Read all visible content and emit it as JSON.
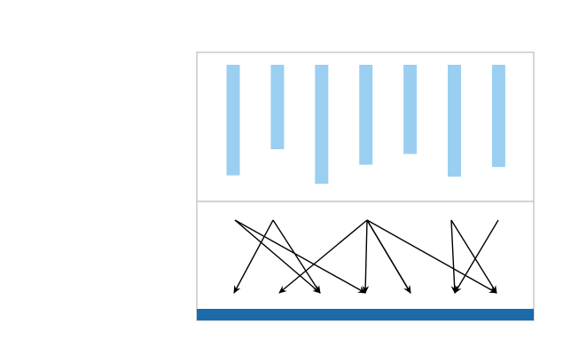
{
  "diagram": {
    "bar_color": "#9ACFF1",
    "panel_border_color": "#C9C9C9",
    "baseline_color": "#1B6BAA",
    "arrow_color": "#000000",
    "bars": [
      {
        "name": "bar-1",
        "relative_length": 0.93
      },
      {
        "name": "bar-2",
        "relative_length": 0.71
      },
      {
        "name": "bar-3",
        "relative_length": 1.0
      },
      {
        "name": "bar-4",
        "relative_length": 0.84
      },
      {
        "name": "bar-5",
        "relative_length": 0.75
      },
      {
        "name": "bar-6",
        "relative_length": 0.94
      },
      {
        "name": "bar-7",
        "relative_length": 0.86
      }
    ],
    "source_nodes": 6,
    "target_nodes": 7,
    "arrows": [
      {
        "from": 0,
        "to": 2
      },
      {
        "from": 0,
        "to": 3
      },
      {
        "from": 1,
        "to": 0
      },
      {
        "from": 1,
        "to": 2
      },
      {
        "from": 2,
        "to": 1
      },
      {
        "from": 2,
        "to": 4
      },
      {
        "from": 3,
        "to": 3
      },
      {
        "from": 3,
        "to": 4
      },
      {
        "from": 3,
        "to": 6
      },
      {
        "from": 4,
        "to": 5
      }
    ]
  }
}
